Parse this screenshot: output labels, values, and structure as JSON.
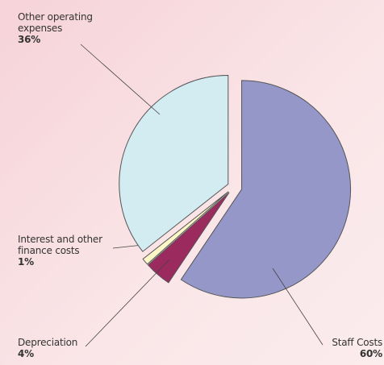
{
  "chart_data": {
    "type": "pie",
    "categories": [
      "Staff Costs",
      "Depreciation",
      "Interest and other finance costs",
      "Other operating expenses"
    ],
    "values": [
      60,
      4,
      1,
      36
    ],
    "value_labels": [
      "60%",
      "4%",
      "1%",
      "36%"
    ],
    "colors": [
      "#9597c9",
      "#9b2a5e",
      "#fdf7c8",
      "#d3ecf2"
    ]
  }
}
